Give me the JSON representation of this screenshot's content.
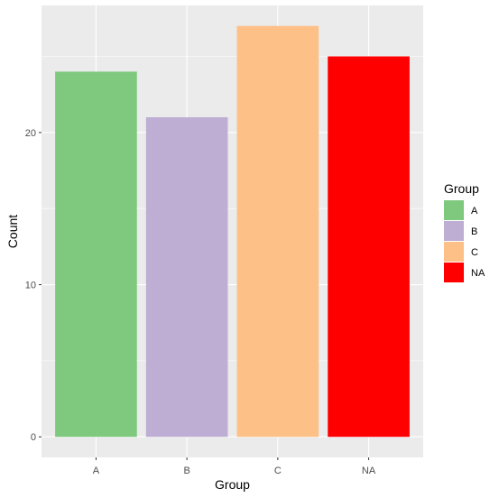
{
  "chart_data": {
    "type": "bar",
    "categories": [
      "A",
      "B",
      "C",
      "NA"
    ],
    "values": [
      24,
      21,
      27,
      25
    ],
    "colors": [
      "#7fc97f",
      "#beaed4",
      "#fdc086",
      "#ff0000"
    ],
    "xlabel": "Group",
    "ylabel": "Count",
    "ylim": [
      -1.35,
      28.35
    ],
    "yticks": [
      0,
      10,
      20
    ],
    "grid": true,
    "panel_background": "#ebebeb",
    "gridline_color": "#ffffff",
    "legend": {
      "title": "Group",
      "placement": "right",
      "entries": [
        "A",
        "B",
        "C",
        "NA"
      ]
    }
  }
}
